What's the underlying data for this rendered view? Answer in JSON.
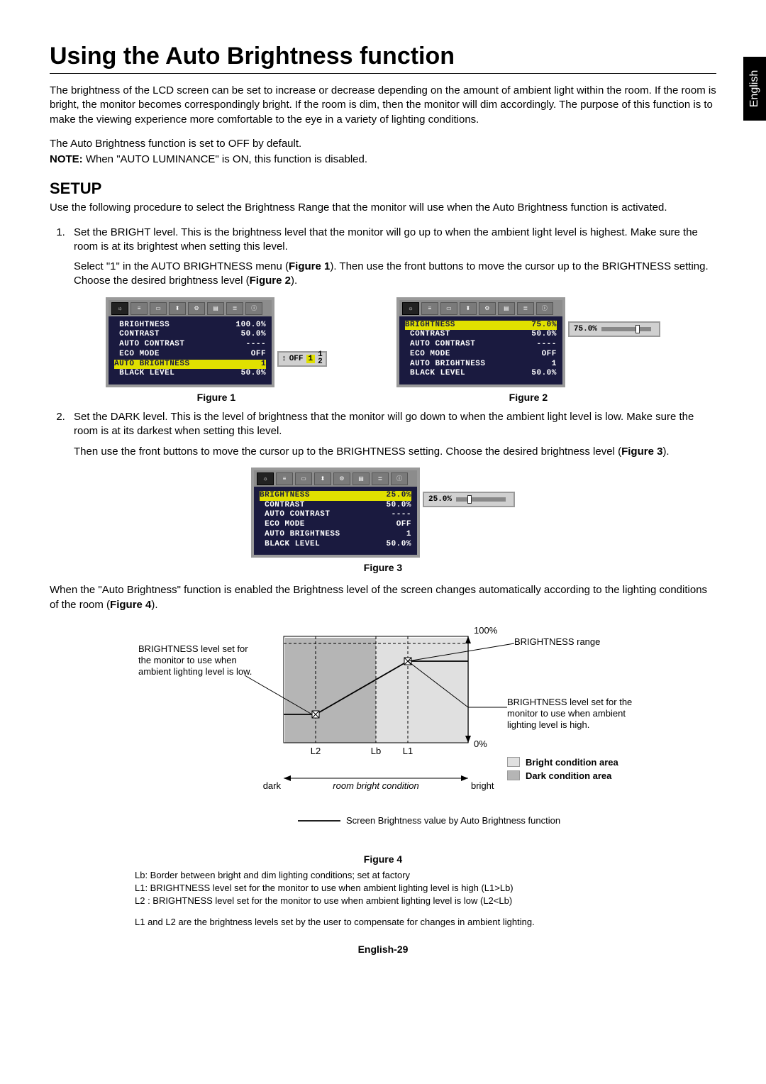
{
  "langTab": "English",
  "title": "Using the Auto Brightness function",
  "intro": "The brightness of the LCD screen can be set to increase or decrease depending on the amount of ambient light within the room. If the room is bright, the monitor becomes correspondingly bright. If the room is dim, then the monitor will dim accordingly. The purpose of this function is to make the viewing experience more comfortable to the eye in a variety of lighting conditions.",
  "default_note": "The Auto Brightness function is set to OFF by default.",
  "note_label": "NOTE:",
  "note_text": " When \"AUTO LUMINANCE\" is ON, this function is disabled.",
  "setup_heading": "SETUP",
  "setup_intro": "Use the following procedure to select the Brightness Range that the monitor will use when the Auto Brightness function is activated.",
  "step1": "Set the BRIGHT level. This is the brightness level that the monitor will go up to when the ambient light level is highest. Make sure the room is at its brightest when setting this level.",
  "step1_detail_a": "Select \"1\" in the AUTO BRIGHTNESS menu (",
  "step1_detail_b": "). Then use the front buttons to move the cursor up to the BRIGHTNESS setting. Choose the desired brightness level (",
  "step1_detail_c": ").",
  "fig1_ref": "Figure 1",
  "fig2_ref": "Figure 2",
  "step2": "Set the DARK level. This is the level of brightness that the monitor will go down to when the ambient light level is low. Make sure the room is at its darkest when setting this level.",
  "step2_detail_a": "Then use the front buttons to move the cursor up to the BRIGHTNESS setting. Choose the desired brightness level (",
  "step2_detail_b": ").",
  "fig3_ref": "Figure 3",
  "post_fig3": "When the \"Auto Brightness\" function is enabled the Brightness level of the screen changes automatically according to the lighting conditions of the room (",
  "fig4_ref": "Figure 4",
  "post_fig3_b": ").",
  "osd": {
    "rows": [
      {
        "label": "BRIGHTNESS",
        "key": "brightness"
      },
      {
        "label": "CONTRAST",
        "key": "contrast"
      },
      {
        "label": "AUTO CONTRAST",
        "key": "auto_contrast"
      },
      {
        "label": "ECO MODE",
        "key": "eco_mode"
      },
      {
        "label": "AUTO BRIGHTNESS",
        "key": "auto_brightness"
      },
      {
        "label": "BLACK LEVEL",
        "key": "black_level"
      }
    ],
    "fig1": {
      "brightness": "100.0%",
      "contrast": "50.0%",
      "auto_contrast": "----",
      "eco_mode": "OFF",
      "auto_brightness": "1",
      "black_level": "50.0%",
      "highlight": "auto_brightness",
      "ext_label": "OFF",
      "ext_opt1": "1",
      "ext_opt2": "2"
    },
    "fig2": {
      "brightness": "75.0%",
      "contrast": "50.0%",
      "auto_contrast": "----",
      "eco_mode": "OFF",
      "auto_brightness": "1",
      "black_level": "50.0%",
      "highlight": "brightness",
      "slider_value": "75.0%",
      "slider_pos": 0.75
    },
    "fig3": {
      "brightness": "25.0%",
      "contrast": "50.0%",
      "auto_contrast": "----",
      "eco_mode": "OFF",
      "auto_brightness": "1",
      "black_level": "50.0%",
      "highlight": "brightness",
      "slider_value": "25.0%",
      "slider_pos": 0.25
    },
    "colors": {
      "panel_bg": "#1a1a3f",
      "highlight_bg": "#e0e000",
      "frame": "#9a9a9a"
    }
  },
  "fig1_cap": "Figure 1",
  "fig2_cap": "Figure 2",
  "fig3_cap": "Figure 3",
  "fig4_cap": "Figure 4",
  "diagram": {
    "y_top": "100%",
    "y_bot": "0%",
    "x_L2": "L2",
    "x_Lb": "Lb",
    "x_L1": "L1",
    "annot_low": "BRIGHTNESS level set for the monitor to use when ambient lighting level is low.",
    "annot_range": "BRIGHTNESS range",
    "annot_high": "BRIGHTNESS level set for the monitor to use when ambient lighting level is high.",
    "axis_dark": "dark",
    "axis_bright": "bright",
    "axis_label": "room bright condition",
    "legend_bright": "Bright condition area",
    "legend_dark": "Dark condition area",
    "legend_line": "Screen Brightness value by Auto Brightness function",
    "colors": {
      "bright_area": "#e0e0e0",
      "dark_area": "#b5b5b5",
      "axis": "#000"
    }
  },
  "notes_lb": "Lb: Border between bright and dim lighting conditions; set at factory",
  "notes_l1": "L1: BRIGHTNESS level set for the monitor to use when ambient lighting level is high (L1>Lb)",
  "notes_l2": "L2 : BRIGHTNESS level set for the monitor to use when ambient lighting level is low (L2<Lb)",
  "notes_final": "L1 and L2 are the brightness levels set by the user to compensate for changes in ambient lighting.",
  "page_num": "English-29"
}
